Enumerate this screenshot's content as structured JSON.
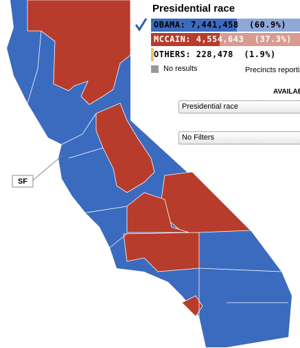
{
  "title": "Presidential race",
  "results": [
    {
      "text": "OBAMA: 7,441,458  (60.9%)"
    },
    {
      "text": "MCCAIN: 4,554,643  (37.3%)"
    },
    {
      "text": "OTHERS: 228,478  (1.9%)"
    }
  ],
  "legend": {
    "no_results": "No results",
    "precincts": "Precincts reporti"
  },
  "available": "AVAILAB",
  "race_select": "Presidential race",
  "filter_select": "No Filters",
  "city_label": "SF"
}
